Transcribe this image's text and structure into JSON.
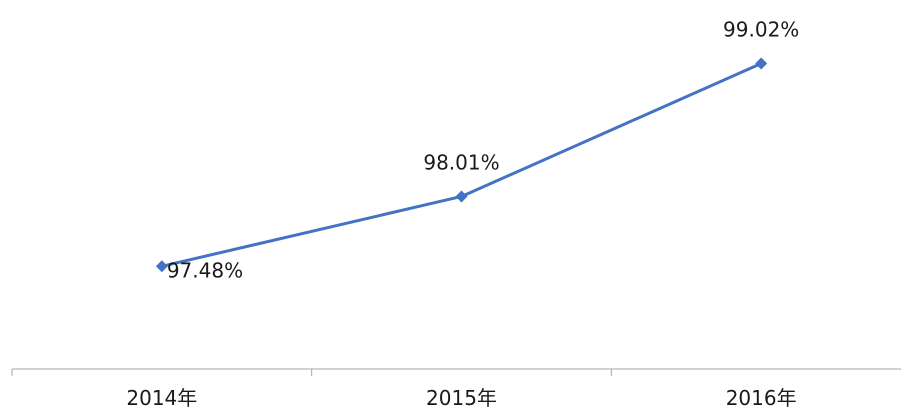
{
  "colors": {
    "series": "#4472C4",
    "axis": "#A6A6A6",
    "text": "#1A1A1A",
    "background": "#FFFFFF"
  },
  "chart_data": {
    "type": "line",
    "categories": [
      "2014年",
      "2015年",
      "2016年"
    ],
    "series": [
      {
        "values": [
          97.48,
          98.01,
          99.02
        ],
        "data_labels": [
          "97.48%",
          "98.01%",
          "99.02%"
        ],
        "marker": "diamond"
      }
    ],
    "ylim": [
      96.7,
      99.35
    ],
    "y_axis_visible": false,
    "grid": false,
    "legend": "none"
  }
}
